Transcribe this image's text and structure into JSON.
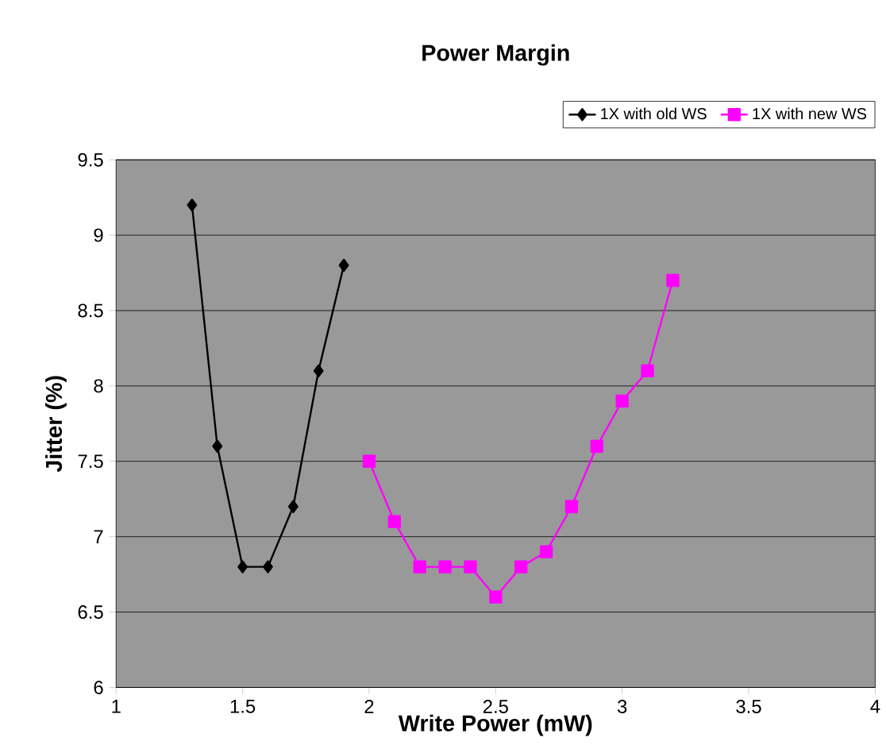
{
  "chart_data": {
    "type": "line",
    "title": "Power Margin",
    "xlabel": "Write Power (mW)",
    "ylabel": "Jitter (%)",
    "xlim": [
      1,
      4
    ],
    "xticks": [
      1,
      1.5,
      2,
      2.5,
      3,
      3.5,
      4
    ],
    "ylim": [
      6,
      9.5
    ],
    "yticks": [
      6,
      6.5,
      7,
      7.5,
      8,
      8.5,
      9,
      9.5
    ],
    "grid": "y",
    "legend": "top",
    "series": [
      {
        "name": "1X with old WS",
        "color": "#000000",
        "marker": "diamond",
        "x": [
          1.3,
          1.4,
          1.5,
          1.6,
          1.7,
          1.8,
          1.9
        ],
        "values": [
          9.2,
          7.6,
          6.8,
          6.8,
          7.2,
          8.1,
          8.8
        ]
      },
      {
        "name": "1X with new WS",
        "color": "#ff00ff",
        "marker": "square",
        "x": [
          2.0,
          2.1,
          2.2,
          2.3,
          2.4,
          2.5,
          2.6,
          2.7,
          2.8,
          2.9,
          3.0,
          3.1,
          3.2
        ],
        "values": [
          7.5,
          7.1,
          6.8,
          6.8,
          6.8,
          6.6,
          6.8,
          6.9,
          7.2,
          7.6,
          7.9,
          8.1,
          8.7
        ]
      }
    ]
  }
}
